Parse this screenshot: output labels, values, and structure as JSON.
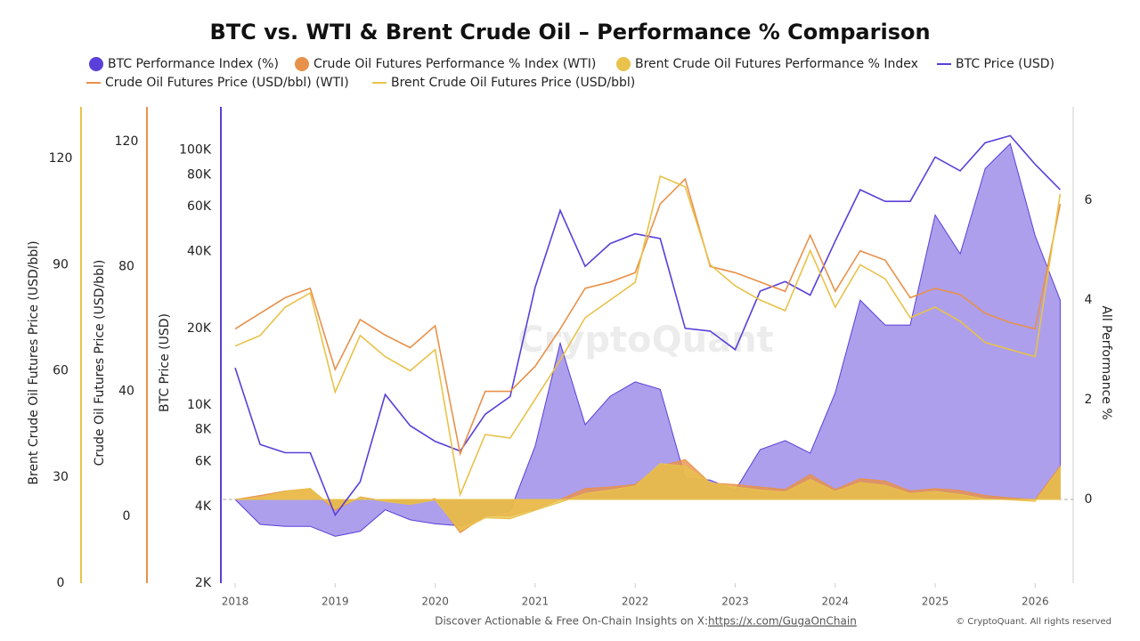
{
  "chart_data": {
    "type": "line",
    "title": "BTC vs. WTI & Brent Crude Oil – Performance % Comparison",
    "watermark": "CryptoQuant",
    "footer": {
      "text": "Discover Actionable & Free On-Chain Insights on X:",
      "link": "https://x.com/GugaOnChain",
      "copyright": "© CryptoQuant. All rights reserved"
    },
    "x": [
      2018.0,
      2018.25,
      2018.5,
      2018.75,
      2019.0,
      2019.25,
      2019.5,
      2019.75,
      2020.0,
      2020.25,
      2020.5,
      2020.75,
      2021.0,
      2021.25,
      2021.5,
      2021.75,
      2022.0,
      2022.25,
      2022.5,
      2022.75,
      2023.0,
      2023.25,
      2023.5,
      2023.75,
      2024.0,
      2024.25,
      2024.5,
      2024.75,
      2025.0,
      2025.25,
      2025.5,
      2025.75,
      2026.0,
      2026.25
    ],
    "xlim": [
      2017.875,
      2026.38
    ],
    "xticks": [
      2018,
      2019,
      2020,
      2021,
      2022,
      2023,
      2024,
      2025,
      2026
    ],
    "yaxes": [
      {
        "id": "brent",
        "label": "Brent Crude Oil Futures Price (USD/bbl)",
        "color": "#e8c24a",
        "lim": [
          0,
          134.6
        ],
        "ticks": [
          0,
          30,
          60,
          90,
          120
        ]
      },
      {
        "id": "wti",
        "label": "Crude Oil Futures Price (USD/bbl)",
        "color": "#e8914a",
        "lim": [
          -21.4,
          131.1
        ],
        "ticks": [
          0,
          40,
          80,
          120
        ]
      },
      {
        "id": "btc",
        "label": "BTC Price (USD)",
        "color": "#5b3fd9",
        "log": true,
        "lim": [
          2000,
          148000
        ],
        "ticks": [
          {
            "value": 2000,
            "label": "2K"
          },
          {
            "value": 4000,
            "label": "4K"
          },
          {
            "value": 6000,
            "label": "6K"
          },
          {
            "value": 8000,
            "label": "8K"
          },
          {
            "value": 10000,
            "label": "10K"
          },
          {
            "value": 20000,
            "label": "20K"
          },
          {
            "value": 40000,
            "label": "40K"
          },
          {
            "value": 60000,
            "label": "60K"
          },
          {
            "value": 80000,
            "label": "80K"
          },
          {
            "value": 100000,
            "label": "100K"
          }
        ]
      },
      {
        "id": "y2",
        "label": "All Performance %",
        "color": "#cccccc",
        "lim": [
          -1.68,
          7.88
        ],
        "ticks": [
          0,
          2,
          4,
          6
        ],
        "grid": "zero"
      }
    ],
    "series": [
      {
        "name": "BTC Performance Index (%)",
        "kind": "area",
        "axis": "y2",
        "color": "#5b3fd9",
        "values": [
          0,
          -0.5,
          -0.54,
          -0.54,
          -0.74,
          -0.64,
          -0.21,
          -0.41,
          -0.49,
          -0.53,
          -0.34,
          -0.23,
          1.07,
          3.14,
          1.5,
          2.07,
          2.36,
          2.21,
          0.43,
          0.39,
          0.18,
          1.0,
          1.18,
          0.93,
          2.14,
          4.0,
          3.5,
          3.5,
          5.71,
          4.93,
          6.64,
          7.14,
          5.29,
          4.0
        ]
      },
      {
        "name": "Crude Oil Futures Performance % Index (WTI)",
        "kind": "area",
        "axis": "y2",
        "color": "#e8914a",
        "values": [
          0,
          0.08,
          0.17,
          0.22,
          -0.22,
          0.05,
          -0.03,
          -0.1,
          0.02,
          -0.67,
          -0.33,
          -0.33,
          -0.2,
          0,
          0.22,
          0.25,
          0.3,
          0.67,
          0.8,
          0.33,
          0.3,
          0.25,
          0.2,
          0.5,
          0.2,
          0.42,
          0.37,
          0.17,
          0.22,
          0.18,
          0.08,
          0.03,
          0,
          0.67
        ]
      },
      {
        "name": "Brent Crude Oil Futures Performance % Index",
        "kind": "area",
        "axis": "y2",
        "color": "#e8c24a",
        "values": [
          0,
          0.04,
          0.16,
          0.22,
          -0.19,
          0.04,
          -0.04,
          -0.1,
          -0.01,
          -0.63,
          -0.37,
          -0.39,
          -0.22,
          -0.06,
          0.12,
          0.19,
          0.27,
          0.72,
          0.67,
          0.34,
          0.25,
          0.19,
          0.15,
          0.4,
          0.16,
          0.34,
          0.28,
          0.12,
          0.16,
          0.1,
          0.01,
          -0.01,
          -0.04,
          0.64
        ]
      },
      {
        "name": "BTC Price (USD)",
        "kind": "line",
        "axis": "btc",
        "color": "#5b3fd9",
        "values": [
          14000,
          7000,
          6500,
          6500,
          3700,
          5000,
          11000,
          8300,
          7200,
          6600,
          9200,
          10800,
          29000,
          58000,
          35000,
          43000,
          47000,
          45000,
          20000,
          19500,
          16500,
          28000,
          30500,
          27000,
          44000,
          70000,
          63000,
          63000,
          94000,
          83000,
          107000,
          114000,
          88000,
          70000
        ]
      },
      {
        "name": "Crude Oil Futures Price (USD/bbl) (WTI)",
        "kind": "line",
        "axis": "wti",
        "color": "#e8914a",
        "values": [
          60,
          65,
          70,
          73,
          47,
          63,
          58,
          54,
          61,
          20,
          40,
          40,
          48,
          60,
          73,
          75,
          78,
          100,
          108,
          80,
          78,
          75,
          72,
          90,
          72,
          85,
          82,
          70,
          73,
          71,
          65,
          62,
          60,
          100
        ]
      },
      {
        "name": "Brent Crude Oil Futures Price (USD/bbl)",
        "kind": "line",
        "axis": "brent",
        "color": "#e8c24a",
        "values": [
          67,
          70,
          78,
          82,
          54,
          70,
          64,
          60,
          66,
          25,
          42,
          41,
          52,
          63,
          75,
          80,
          85,
          115,
          112,
          90,
          84,
          80,
          77,
          94,
          78,
          90,
          86,
          75,
          78,
          74,
          68,
          66,
          64,
          110
        ]
      }
    ]
  }
}
